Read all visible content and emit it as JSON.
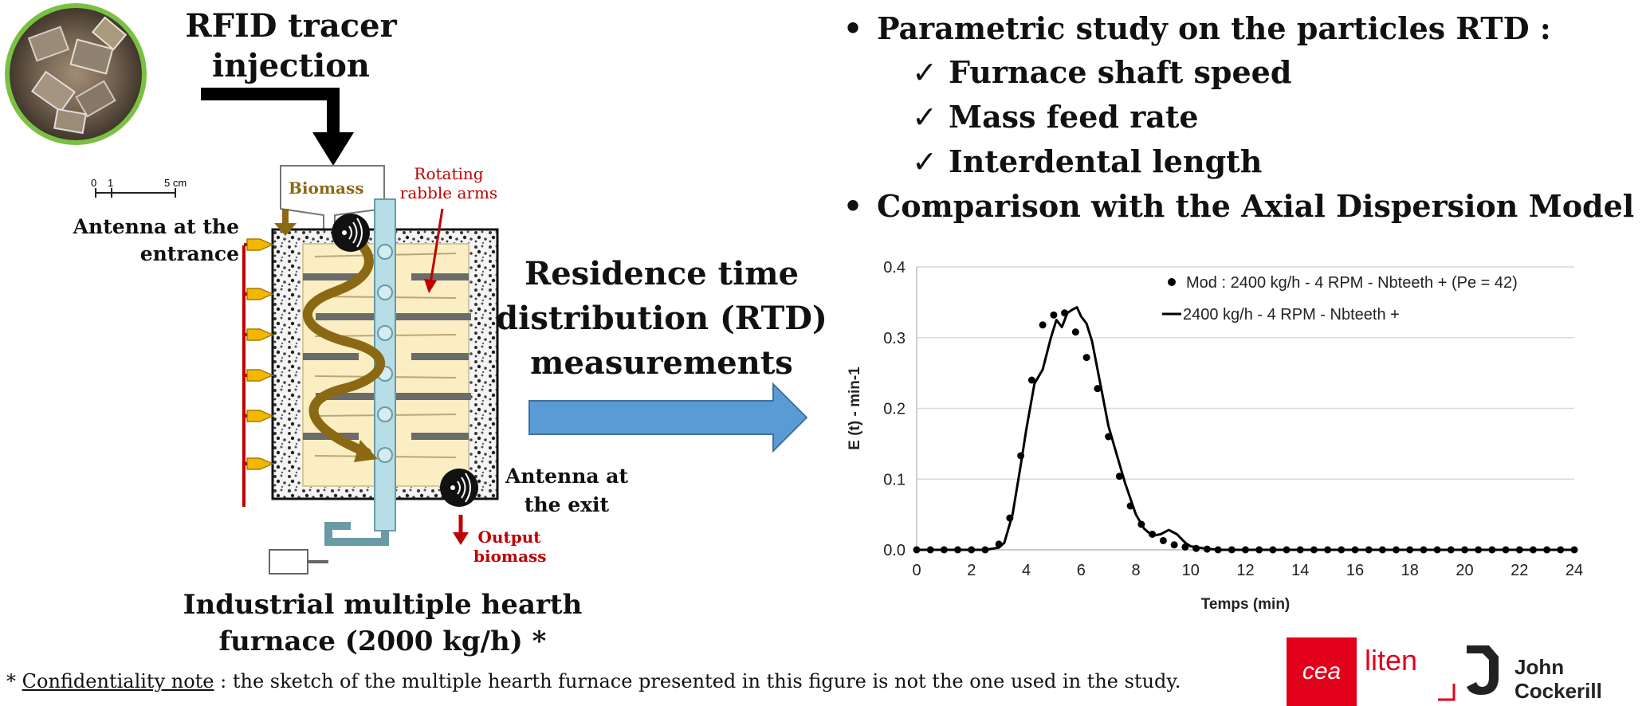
{
  "left": {
    "rfid_title": "RFID tracer injection",
    "scale_0": "0",
    "scale_1": "1",
    "scale_5": "5 cm",
    "biomass_label": "Biomass",
    "rotating_label": "Rotating rabble arms",
    "antenna_entrance": "Antenna at the entrance",
    "antenna_exit": "Antenna at the exit",
    "output_label": "Output biomass",
    "furnace_title": "Industrial multiple hearth furnace (2000 kg/h) *"
  },
  "middle": {
    "rtd_label": "Residence time distribution (RTD) measurements"
  },
  "right": {
    "bullet_1": "Parametric study on the particles RTD :",
    "check_1": "Furnace shaft speed",
    "check_2": "Mass feed rate",
    "check_3": "Interdental length",
    "bullet_2": "Comparison with the Axial Dispersion Model"
  },
  "footnote": {
    "prefix": "* ",
    "underlined": "Confidentiality note",
    "text": " : the sketch of the multiple hearth furnace presented in this figure is not the one used in the study."
  },
  "logos": {
    "cea": "cea",
    "liten": "liten",
    "jc_line1": "John",
    "jc_line2": "Cockerill"
  },
  "colors": {
    "arrow_blue": "#5b9bd5",
    "red": "#c00000",
    "biomass_brown": "#8b6914",
    "shaft": "#b7dde6",
    "inner": "#fbeec3",
    "cea_red": "#e2001a"
  },
  "chart_data": {
    "type": "scatter",
    "title": "",
    "xlabel": "Temps (min)",
    "ylabel": "E (t)  - min-1",
    "xlim": [
      0,
      24
    ],
    "ylim": [
      0,
      0.4
    ],
    "x_ticks": [
      "0",
      "2",
      "4",
      "6",
      "8",
      "10",
      "12",
      "14",
      "16",
      "18",
      "20",
      "22",
      "24"
    ],
    "y_ticks": [
      "0.0",
      "0.1",
      "0.2",
      "0.3",
      "0.4"
    ],
    "grid": true,
    "legend_position": "top-right",
    "series": [
      {
        "name": "Mod : 2400 kg/h - 4 RPM - Nbteeth + (Pe = 42)",
        "style": "points",
        "x": [
          0,
          0.5,
          1,
          1.5,
          2,
          2.5,
          3,
          3.4,
          3.8,
          4.2,
          4.6,
          5,
          5.4,
          5.8,
          6.2,
          6.6,
          7,
          7.4,
          7.8,
          8.2,
          8.6,
          9,
          9.4,
          9.8,
          10.2,
          10.6,
          11,
          11.5,
          12,
          12.5,
          13,
          13.5,
          14,
          14.5,
          15,
          15.5,
          16,
          16.5,
          17,
          17.5,
          18,
          18.5,
          19,
          19.5,
          20,
          20.5,
          21,
          21.5,
          22,
          22.5,
          23,
          23.5,
          24
        ],
        "y": [
          0,
          0,
          0,
          0,
          0,
          0,
          0.008,
          0.045,
          0.133,
          0.24,
          0.318,
          0.332,
          0.335,
          0.308,
          0.272,
          0.228,
          0.16,
          0.104,
          0.062,
          0.036,
          0.022,
          0.013,
          0.007,
          0.004,
          0.002,
          0.001,
          0,
          0,
          0,
          0,
          0,
          0,
          0,
          0,
          0,
          0,
          0,
          0,
          0,
          0,
          0,
          0,
          0,
          0,
          0,
          0,
          0,
          0,
          0,
          0,
          0,
          0,
          0
        ]
      },
      {
        "name": "2400 kg/h - 4 RPM - Nbteeth +",
        "style": "line",
        "x": [
          0,
          1,
          2,
          2.5,
          3,
          3.2,
          3.5,
          3.8,
          4,
          4.3,
          4.6,
          4.9,
          5.1,
          5.3,
          5.5,
          5.7,
          5.85,
          6,
          6.2,
          6.4,
          6.6,
          6.8,
          7,
          7.3,
          7.6,
          8,
          8.3,
          8.6,
          8.9,
          9.2,
          9.5,
          9.8,
          10,
          10.5,
          11,
          12,
          14,
          16,
          18,
          20,
          22,
          24
        ],
        "y": [
          0,
          0,
          0,
          0,
          0.003,
          0.01,
          0.05,
          0.12,
          0.17,
          0.235,
          0.255,
          0.3,
          0.325,
          0.315,
          0.335,
          0.34,
          0.343,
          0.33,
          0.32,
          0.295,
          0.255,
          0.215,
          0.175,
          0.135,
          0.095,
          0.05,
          0.03,
          0.02,
          0.022,
          0.028,
          0.022,
          0.01,
          0.005,
          0.002,
          0,
          0,
          0,
          0,
          0,
          0,
          0,
          0
        ]
      }
    ]
  }
}
